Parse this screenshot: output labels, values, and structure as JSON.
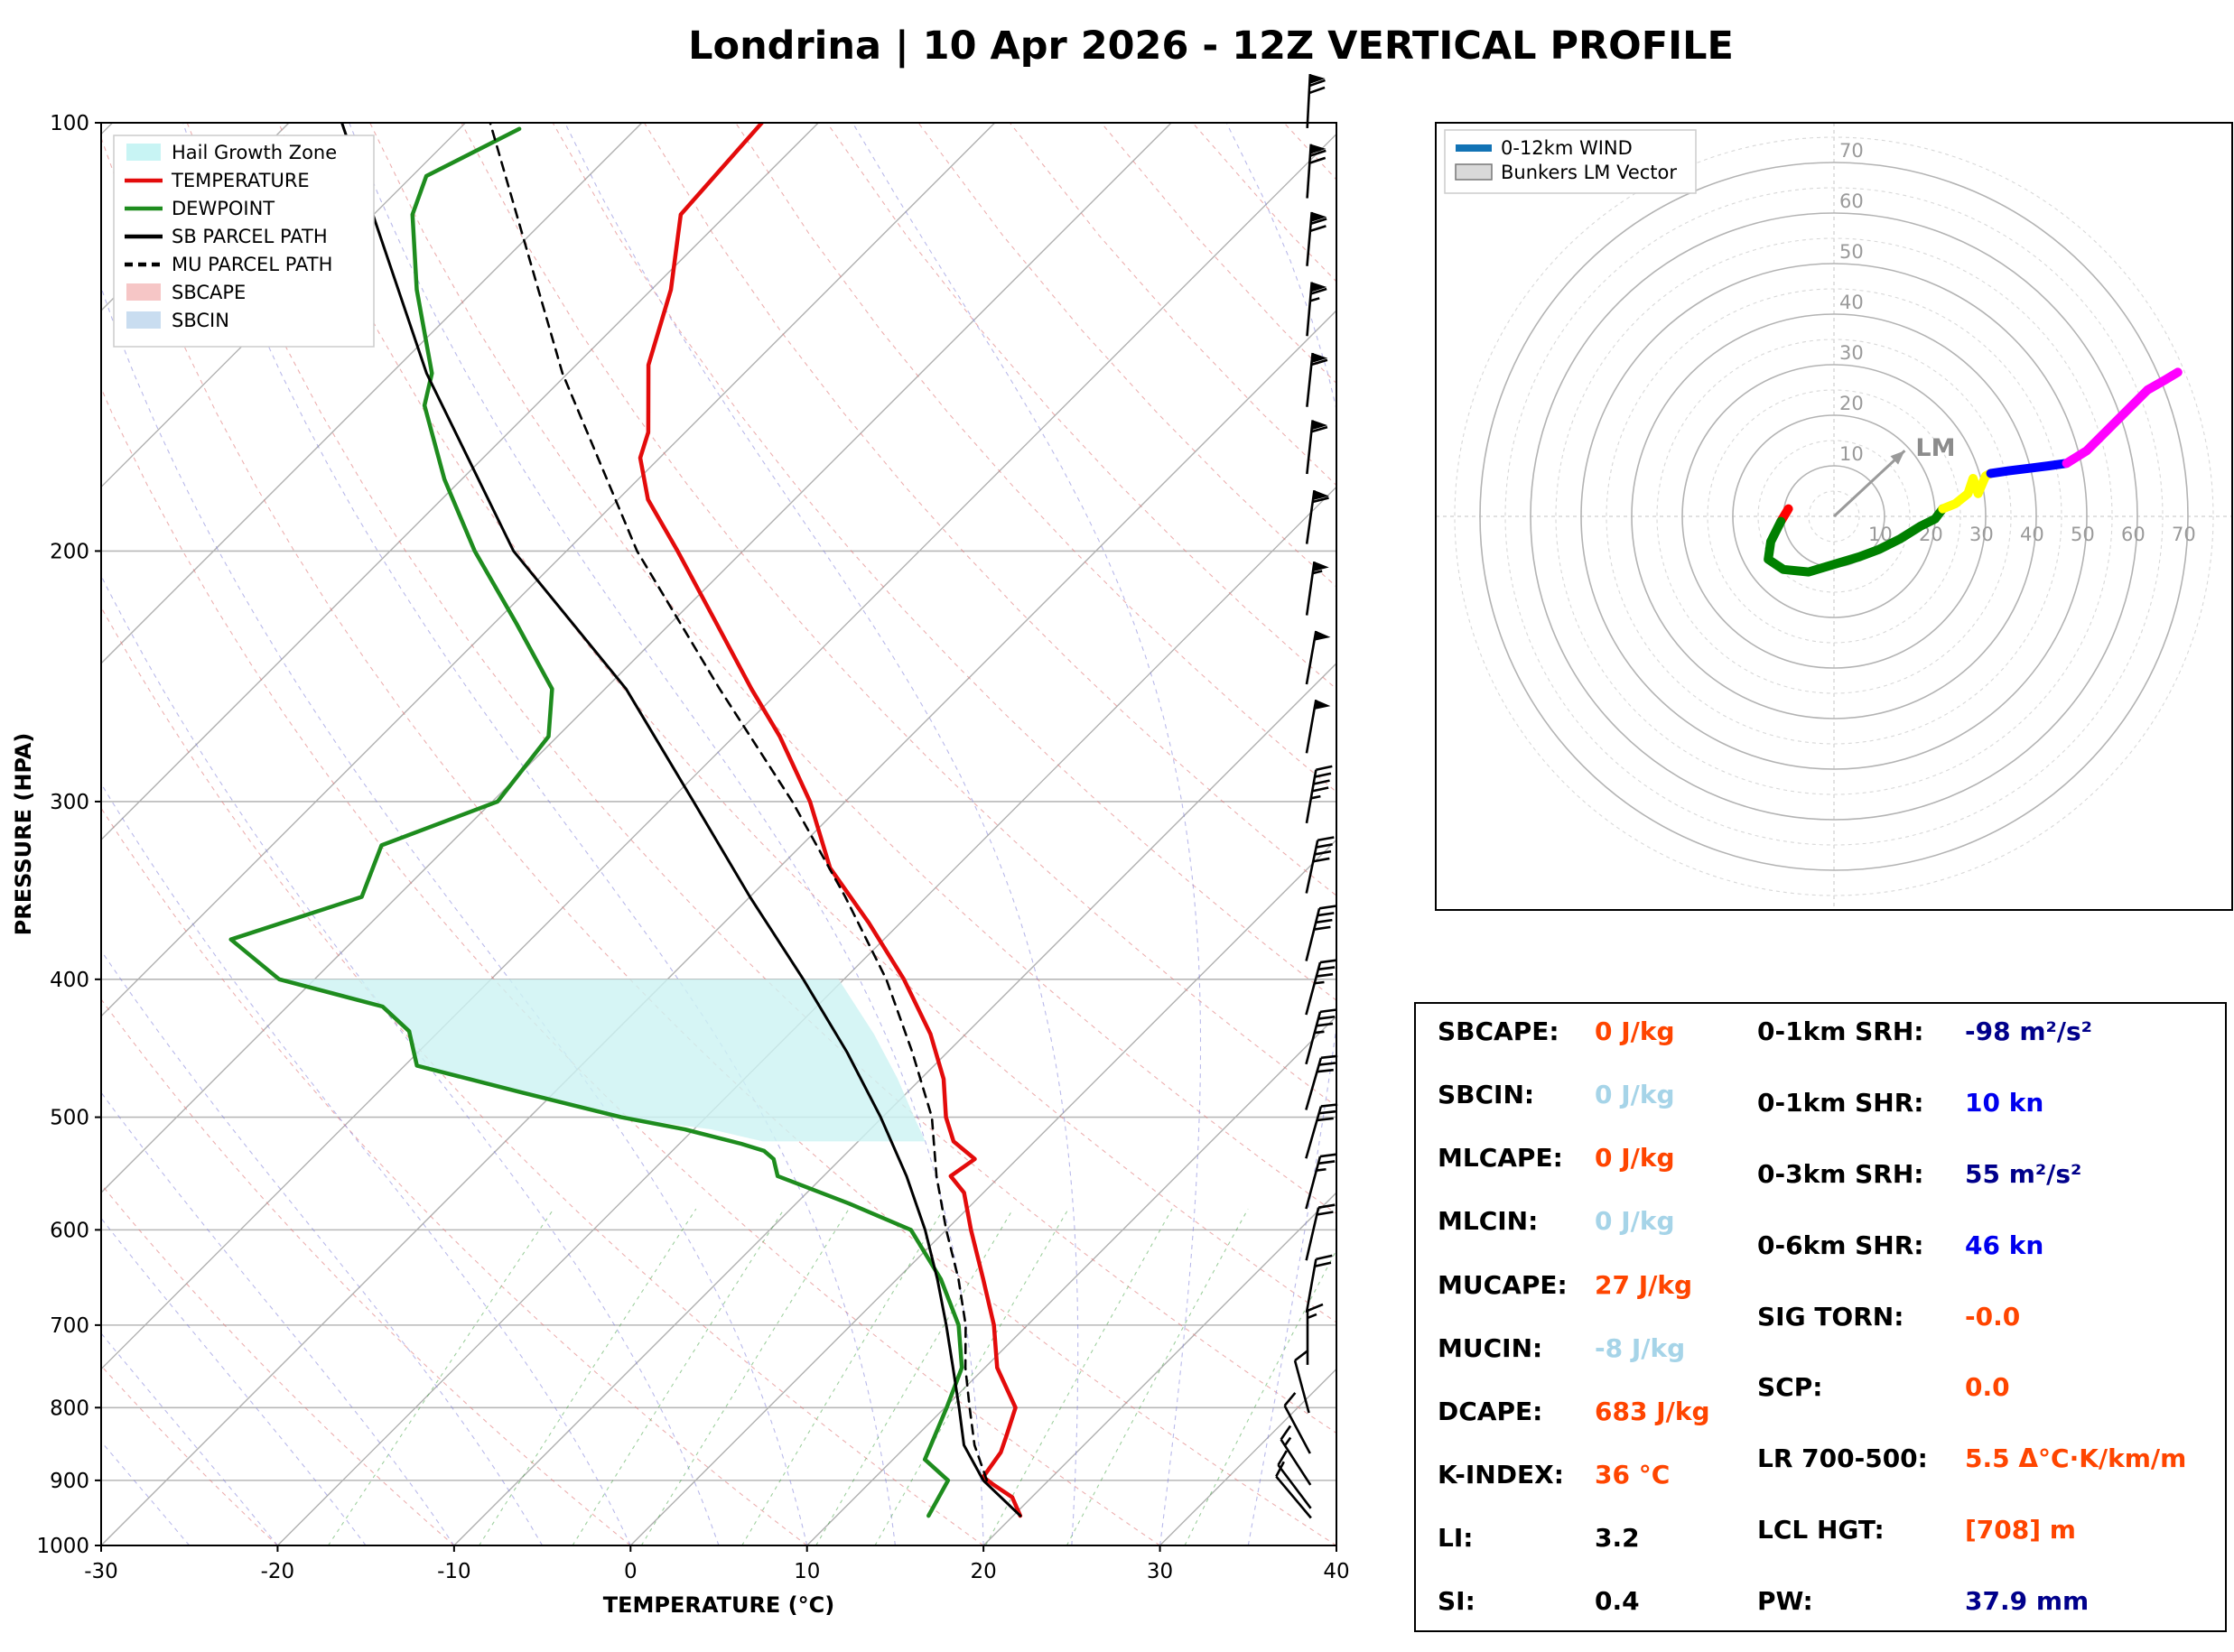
{
  "title": "Londrina | 10 Apr 2026 - 12Z VERTICAL PROFILE",
  "chart_data": [
    {
      "type": "line",
      "subtype": "skew-t-log-p",
      "title": "Londrina | 10 Apr 2026 - 12Z VERTICAL PROFILE",
      "xlabel": "TEMPERATURE (°C)",
      "ylabel": "PRESSURE (HPA)",
      "xlim": [
        -30,
        40
      ],
      "ylim": [
        1000,
        100
      ],
      "y_scale": "log",
      "skew_degrees": 45,
      "grid": true,
      "legend_position": "upper left",
      "x_ticks": [
        -30,
        -20,
        -10,
        0,
        10,
        20,
        30,
        40
      ],
      "p_ticks": [
        100,
        200,
        300,
        400,
        500,
        600,
        700,
        800,
        900,
        1000
      ],
      "legend": [
        {
          "label": "Hail Growth Zone",
          "type": "patch",
          "color": "#c8f4f4"
        },
        {
          "label": "TEMPERATURE",
          "type": "line",
          "color": "#e30b0b"
        },
        {
          "label": "DEWPOINT",
          "type": "line",
          "color": "#1e8c1e"
        },
        {
          "label": "SB PARCEL PATH",
          "type": "line",
          "color": "#000000"
        },
        {
          "label": "MU PARCEL PATH",
          "type": "dashed",
          "color": "#000000"
        },
        {
          "label": "SBCAPE",
          "type": "patch",
          "color": "#f6c6c6"
        },
        {
          "label": "SBCIN",
          "type": "patch",
          "color": "#c9ddf0"
        }
      ],
      "series": [
        {
          "id": "temperature-curve",
          "name": "TEMPERATURE",
          "color": "#e30b0b",
          "width": 4.5,
          "points": [
            [
              953,
              20.4
            ],
            [
              925,
              18.9
            ],
            [
              905,
              17.0
            ],
            [
              895,
              16.1
            ],
            [
              860,
              15.7
            ],
            [
              838,
              15.1
            ],
            [
              800,
              14.0
            ],
            [
              750,
              10.7
            ],
            [
              700,
              8.1
            ],
            [
              650,
              4.9
            ],
            [
              600,
              1.4
            ],
            [
              565,
              -1.1
            ],
            [
              550,
              -2.8
            ],
            [
              535,
              -2.4
            ],
            [
              520,
              -4.6
            ],
            [
              500,
              -6.4
            ],
            [
              470,
              -8.7
            ],
            [
              437,
              -12.0
            ],
            [
              400,
              -16.6
            ],
            [
              365,
              -21.8
            ],
            [
              334,
              -27.1
            ],
            [
              300,
              -32.0
            ],
            [
              270,
              -37.4
            ],
            [
              250,
              -41.7
            ],
            [
              224,
              -47.6
            ],
            [
              200,
              -53.7
            ],
            [
              184,
              -58.3
            ],
            [
              172,
              -61.1
            ],
            [
              165,
              -62.1
            ],
            [
              148,
              -65.9
            ],
            [
              131,
              -68.9
            ],
            [
              116,
              -72.6
            ],
            [
              100,
              -73.2
            ]
          ]
        },
        {
          "id": "dewpoint-curve",
          "name": "DEWPOINT",
          "color": "#1e8c1e",
          "width": 4.5,
          "points": [
            [
              953,
              15.2
            ],
            [
              900,
              14.3
            ],
            [
              870,
              11.8
            ],
            [
              800,
              10.1
            ],
            [
              750,
              8.7
            ],
            [
              700,
              6.1
            ],
            [
              650,
              2.5
            ],
            [
              600,
              -2.0
            ],
            [
              575,
              -7.0
            ],
            [
              550,
              -12.6
            ],
            [
              535,
              -13.8
            ],
            [
              528,
              -14.8
            ],
            [
              522,
              -16.5
            ],
            [
              510,
              -20.5
            ],
            [
              500,
              -24.8
            ],
            [
              480,
              -32.0
            ],
            [
              460,
              -39.3
            ],
            [
              435,
              -41.7
            ],
            [
              418,
              -44.6
            ],
            [
              400,
              -52.0
            ],
            [
              375,
              -57.0
            ],
            [
              350,
              -52.0
            ],
            [
              322,
              -53.8
            ],
            [
              300,
              -49.7
            ],
            [
              270,
              -50.5
            ],
            [
              250,
              -53.0
            ],
            [
              225,
              -58.7
            ],
            [
              200,
              -65.2
            ],
            [
              178,
              -71.0
            ],
            [
              158,
              -76.3
            ],
            [
              150,
              -77.7
            ],
            [
              131,
              -83.3
            ],
            [
              116,
              -87.8
            ],
            [
              109,
              -89.2
            ],
            [
              101,
              -86.6
            ]
          ]
        },
        {
          "id": "sb-parcel-path",
          "name": "SB PARCEL PATH",
          "color": "#000000",
          "width": 3,
          "points": [
            [
              953,
              20.4
            ],
            [
              900,
              16.3
            ],
            [
              850,
              13.2
            ],
            [
              800,
              10.8
            ],
            [
              750,
              8.2
            ],
            [
              700,
              5.4
            ],
            [
              650,
              2.3
            ],
            [
              600,
              -1.2
            ],
            [
              550,
              -5.3
            ],
            [
              500,
              -10.1
            ],
            [
              450,
              -15.7
            ],
            [
              400,
              -22.3
            ],
            [
              350,
              -30.0
            ],
            [
              300,
              -38.6
            ],
            [
              250,
              -48.8
            ],
            [
              200,
              -63.0
            ],
            [
              150,
              -78.0
            ],
            [
              100,
              -97.0
            ]
          ]
        },
        {
          "id": "mu-parcel-path",
          "name": "MU PARCEL PATH",
          "color": "#000000",
          "width": 2.6,
          "dash": "10 8",
          "points": [
            [
              900,
              16.5
            ],
            [
              850,
              13.8
            ],
            [
              800,
              11.4
            ],
            [
              750,
              8.9
            ],
            [
              700,
              6.5
            ],
            [
              650,
              3.5
            ],
            [
              600,
              0.0
            ],
            [
              550,
              -3.6
            ],
            [
              500,
              -7.2
            ],
            [
              450,
              -12.0
            ],
            [
              400,
              -17.6
            ],
            [
              350,
              -24.6
            ],
            [
              300,
              -33.0
            ],
            [
              250,
              -43.5
            ],
            [
              200,
              -56.0
            ],
            [
              150,
              -70.3
            ],
            [
              100,
              -88.6
            ]
          ]
        }
      ],
      "hail_growth_zone": [
        [
          400,
          -52.0
        ],
        [
          400,
          -20.3
        ],
        [
          437,
          -15.2
        ],
        [
          470,
          -11.3
        ],
        [
          500,
          -8.2
        ],
        [
          520,
          -6.2
        ],
        [
          520,
          -15.4
        ],
        [
          510,
          -19.0
        ],
        [
          500,
          -24.8
        ],
        [
          480,
          -32.0
        ],
        [
          460,
          -39.3
        ],
        [
          435,
          -41.7
        ],
        [
          418,
          -44.6
        ]
      ],
      "wind_barbs": [
        {
          "p": 100,
          "kn": 70,
          "dir": 183
        },
        {
          "p": 112,
          "kn": 72,
          "dir": 184
        },
        {
          "p": 125,
          "kn": 68,
          "dir": 185
        },
        {
          "p": 140,
          "kn": 65,
          "dir": 185
        },
        {
          "p": 157,
          "kn": 62,
          "dir": 186
        },
        {
          "p": 175,
          "kn": 60,
          "dir": 186
        },
        {
          "p": 196,
          "kn": 58,
          "dir": 188
        },
        {
          "p": 220,
          "kn": 55,
          "dir": 188
        },
        {
          "p": 246,
          "kn": 52,
          "dir": 190
        },
        {
          "p": 275,
          "kn": 48,
          "dir": 190
        },
        {
          "p": 308,
          "kn": 46,
          "dir": 190
        },
        {
          "p": 345,
          "kn": 42,
          "dir": 192
        },
        {
          "p": 385,
          "kn": 38,
          "dir": 194
        },
        {
          "p": 420,
          "kn": 36,
          "dir": 195
        },
        {
          "p": 455,
          "kn": 34,
          "dir": 195
        },
        {
          "p": 490,
          "kn": 31,
          "dir": 196
        },
        {
          "p": 530,
          "kn": 28,
          "dir": 196
        },
        {
          "p": 575,
          "kn": 25,
          "dir": 195
        },
        {
          "p": 625,
          "kn": 22,
          "dir": 193
        },
        {
          "p": 680,
          "kn": 18,
          "dir": 190
        },
        {
          "p": 740,
          "kn": 13,
          "dir": 180
        },
        {
          "p": 800,
          "kn": 10,
          "dir": 165
        },
        {
          "p": 855,
          "kn": 11,
          "dir": 152
        },
        {
          "p": 900,
          "kn": 13,
          "dir": 147
        },
        {
          "p": 935,
          "kn": 10,
          "dir": 143
        },
        {
          "p": 950,
          "kn": 9,
          "dir": 140
        }
      ]
    },
    {
      "type": "line",
      "subtype": "hodograph",
      "rings": [
        10,
        20,
        30,
        40,
        50,
        60,
        70
      ],
      "ring_step": 10,
      "legend": [
        {
          "label": "0-12km WIND",
          "type": "line",
          "color": "#1273b5"
        },
        {
          "label": "Bunkers LM Vector",
          "type": "patch",
          "color": "#d9d9d9"
        }
      ],
      "segments": [
        {
          "color": "red",
          "points": [
            [
              -9,
              1.5
            ],
            [
              -10.5,
              -1
            ]
          ]
        },
        {
          "color": "green",
          "points": [
            [
              -10.5,
              -1
            ],
            [
              -12.5,
              -5
            ],
            [
              -13,
              -8.5
            ],
            [
              -10,
              -10.5
            ],
            [
              -5,
              -11
            ],
            [
              0,
              -9.5
            ],
            [
              5,
              -8
            ],
            [
              9,
              -6.5
            ],
            [
              13,
              -4.5
            ],
            [
              17,
              -2
            ],
            [
              20,
              -0.5
            ],
            [
              21.5,
              1.5
            ]
          ]
        },
        {
          "color": "yellow",
          "points": [
            [
              21.5,
              1.5
            ],
            [
              24,
              2.5
            ],
            [
              26.5,
              4.5
            ],
            [
              27.5,
              7.5
            ],
            [
              28.5,
              4.5
            ],
            [
              30,
              8
            ],
            [
              31,
              8.5
            ]
          ]
        },
        {
          "color": "blue",
          "points": [
            [
              31,
              8.5
            ],
            [
              34.5,
              9
            ],
            [
              38.5,
              9.5
            ],
            [
              42.5,
              10
            ],
            [
              46,
              10.5
            ]
          ]
        },
        {
          "color": "magenta",
          "points": [
            [
              46,
              10.5
            ],
            [
              50,
              13
            ],
            [
              54,
              17
            ],
            [
              58,
              21
            ],
            [
              62,
              25
            ],
            [
              65.5,
              27
            ],
            [
              68,
              28.5
            ]
          ]
        }
      ],
      "lm_vector": {
        "u": 14,
        "v": 13,
        "label": "LM"
      }
    }
  ],
  "indices": {
    "left": [
      {
        "label": "SBCAPE:",
        "value": "0 J/kg",
        "color": "#ff4500"
      },
      {
        "label": "SBCIN:",
        "value": "0 J/kg",
        "color": "#a6d4e8"
      },
      {
        "label": "MLCAPE:",
        "value": "0 J/kg",
        "color": "#ff4500"
      },
      {
        "label": "MLCIN:",
        "value": "0 J/kg",
        "color": "#a6d4e8"
      },
      {
        "label": "MUCAPE:",
        "value": "27 J/kg",
        "color": "#ff4500"
      },
      {
        "label": "MUCIN:",
        "value": "-8 J/kg",
        "color": "#a6d4e8"
      },
      {
        "label": "DCAPE:",
        "value": "683 J/kg",
        "color": "#ff4500"
      },
      {
        "label": "K-INDEX:",
        "value": "36 °C",
        "color": "#ff4500"
      },
      {
        "label": "LI:",
        "value": "3.2",
        "color": "#000000"
      },
      {
        "label": "SI:",
        "value": "0.4",
        "color": "#000000"
      }
    ],
    "right": [
      {
        "label": "0-1km SRH:",
        "value": "-98 m²/s²",
        "color": "#00008b"
      },
      {
        "label": "0-1km SHR:",
        "value": "10 kn",
        "color": "#0000ee"
      },
      {
        "label": "0-3km SRH:",
        "value": "55 m²/s²",
        "color": "#00008b"
      },
      {
        "label": "0-6km SHR:",
        "value": "46 kn",
        "color": "#0000ee"
      },
      {
        "label": "SIG TORN:",
        "value": "-0.0",
        "color": "#ff4500"
      },
      {
        "label": "SCP:",
        "value": "0.0",
        "color": "#ff4500"
      },
      {
        "label": "LR 700-500:",
        "value": "5.5 Δ°C·K/km/m",
        "color": "#ff4500"
      },
      {
        "label": "LCL HGT:",
        "value": "[708] m",
        "color": "#ff4500"
      },
      {
        "label": "PW:",
        "value": "37.9 mm",
        "color": "#00008b"
      }
    ]
  }
}
